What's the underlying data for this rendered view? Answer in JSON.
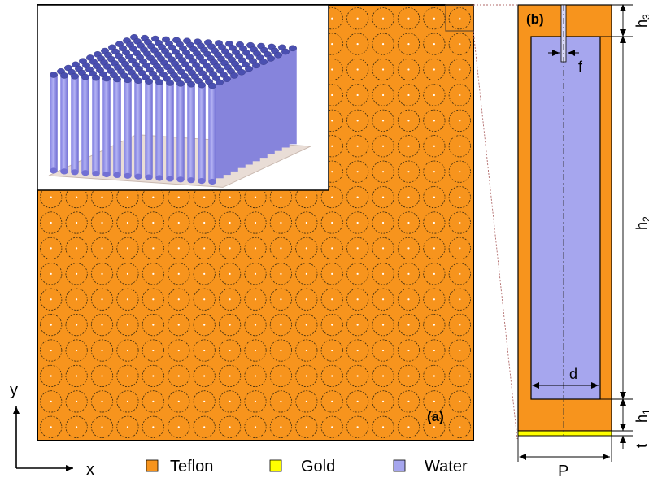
{
  "colors": {
    "teflon": "#f7941d",
    "gold": "#ffff00",
    "water": "#a6a6ee",
    "cylinder_top": "#4a4fb0",
    "cylinder_side": "#9a98e8",
    "dashed": "#3a2a10"
  },
  "panel_a": {
    "label": "(a)",
    "grid_rows": 17,
    "grid_cols": 17,
    "inset_rows": 12,
    "inset_cols": 16
  },
  "panel_b": {
    "label": "(b)",
    "dimensions": {
      "h3_base": "h",
      "h3_sub": "3",
      "h2_base": "h",
      "h2_sub": "2",
      "h1_base": "h",
      "h1_sub": "1",
      "t": "t",
      "f": "f",
      "d": "d",
      "P": "P"
    }
  },
  "axes": {
    "x": "x",
    "y": "y"
  },
  "legend": [
    {
      "key": "teflon",
      "label": "Teflon",
      "icon": "teflon-swatch"
    },
    {
      "key": "gold",
      "label": "Gold",
      "icon": "gold-swatch"
    },
    {
      "key": "water",
      "label": "Water",
      "icon": "water-swatch"
    }
  ]
}
